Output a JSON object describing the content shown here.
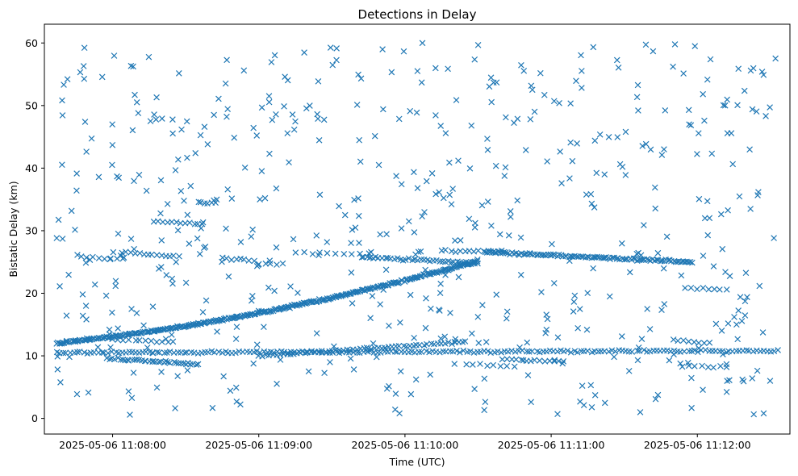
{
  "chart_data": {
    "type": "scatter",
    "title": "Detections in Delay",
    "xlabel": "Time (UTC)",
    "ylabel": "Bistatic Delay (km)",
    "x_unit": "UTC time",
    "x_range": [
      "2025-05-06 11:07:37",
      "2025-05-06 11:12:33"
    ],
    "xlim": [
      "2025-05-06 11:07:32",
      "2025-05-06 11:12:38"
    ],
    "ylim": [
      -2.5,
      63
    ],
    "xticks": [
      {
        "value": "2025-05-06 11:08:00",
        "label": "2025-05-06 11:08:00"
      },
      {
        "value": "2025-05-06 11:09:00",
        "label": "2025-05-06 11:09:00"
      },
      {
        "value": "2025-05-06 11:10:00",
        "label": "2025-05-06 11:10:00"
      },
      {
        "value": "2025-05-06 11:11:00",
        "label": "2025-05-06 11:11:00"
      },
      {
        "value": "2025-05-06 11:12:00",
        "label": "2025-05-06 11:12:00"
      }
    ],
    "yticks": [
      0,
      10,
      20,
      30,
      40,
      50,
      60
    ],
    "grid": false,
    "legend": "none",
    "marker": "x",
    "color": "#1f77b4",
    "series": [
      {
        "structure": "tracks",
        "tracks": [
          {
            "t_start": "2025-05-06 11:07:37",
            "t_end": "2025-05-06 11:10:30",
            "y_start": 12.0,
            "y_end": 25.2,
            "curve": "accelerating",
            "count": 330
          },
          {
            "t_start": "2025-05-06 11:09:42",
            "t_end": "2025-05-06 11:10:30",
            "y_start": 25.8,
            "y_end": 24.8,
            "count": 40
          },
          {
            "t_start": "2025-05-06 11:10:33",
            "t_end": "2025-05-06 11:11:58",
            "y_start": 26.6,
            "y_end": 25.0,
            "count": 110
          },
          {
            "t_start": "2025-05-06 11:10:15",
            "t_end": "2025-05-06 11:10:40",
            "y_start": 26.8,
            "y_end": 26.8,
            "count": 14
          },
          {
            "t_start": "2025-05-06 11:07:47",
            "t_end": "2025-05-06 11:08:04",
            "y_start": 25.7,
            "y_end": 25.5,
            "count": 8
          },
          {
            "t_start": "2025-05-06 11:08:04",
            "t_end": "2025-05-06 11:08:27",
            "y_start": 26.6,
            "y_end": 25.8,
            "count": 14
          },
          {
            "t_start": "2025-05-06 11:08:17",
            "t_end": "2025-05-06 11:08:37",
            "y_start": 31.5,
            "y_end": 31.0,
            "count": 12
          },
          {
            "t_start": "2025-05-06 11:08:35",
            "t_end": "2025-05-06 11:08:42",
            "y_start": 34.6,
            "y_end": 34.4,
            "count": 6
          },
          {
            "t_start": "2025-05-06 11:08:45",
            "t_end": "2025-05-06 11:08:58",
            "y_start": 25.6,
            "y_end": 25.2,
            "count": 8
          },
          {
            "t_start": "2025-05-06 11:09:00",
            "t_end": "2025-05-06 11:09:10",
            "y_start": 24.8,
            "y_end": 24.6,
            "count": 5
          },
          {
            "t_start": "2025-05-06 11:09:15",
            "t_end": "2025-05-06 11:09:45",
            "y_start": 26.5,
            "y_end": 26.3,
            "count": 10
          },
          {
            "t_start": "2025-05-06 11:07:37",
            "t_end": "2025-05-06 11:12:33",
            "y_start": 10.5,
            "y_end": 10.8,
            "count": 210
          },
          {
            "t_start": "2025-05-06 11:09:00",
            "t_end": "2025-05-06 11:10:25",
            "y_start": 10.0,
            "y_end": 12.2,
            "count": 60
          },
          {
            "t_start": "2025-05-06 11:07:58",
            "t_end": "2025-05-06 11:08:35",
            "y_start": 9.6,
            "y_end": 8.6,
            "count": 38
          },
          {
            "t_start": "2025-05-06 11:08:00",
            "t_end": "2025-05-06 11:08:25",
            "y_start": 12.6,
            "y_end": 12.2,
            "count": 12
          },
          {
            "t_start": "2025-05-06 11:10:25",
            "t_end": "2025-05-06 11:10:45",
            "y_start": 8.6,
            "y_end": 8.4,
            "count": 8
          },
          {
            "t_start": "2025-05-06 11:10:40",
            "t_end": "2025-05-06 11:11:05",
            "y_start": 9.5,
            "y_end": 9.1,
            "count": 14
          },
          {
            "t_start": "2025-05-06 11:11:50",
            "t_end": "2025-05-06 11:12:05",
            "y_start": 12.5,
            "y_end": 12.0,
            "count": 8
          },
          {
            "t_start": "2025-05-06 11:11:54",
            "t_end": "2025-05-06 11:12:12",
            "y_start": 8.4,
            "y_end": 8.2,
            "count": 8
          },
          {
            "t_start": "2025-05-06 11:11:55",
            "t_end": "2025-05-06 11:12:12",
            "y_start": 20.9,
            "y_end": 20.6,
            "count": 8
          }
        ],
        "scatter": {
          "y_range": [
            0.5,
            60
          ],
          "count": 560
        }
      }
    ]
  }
}
